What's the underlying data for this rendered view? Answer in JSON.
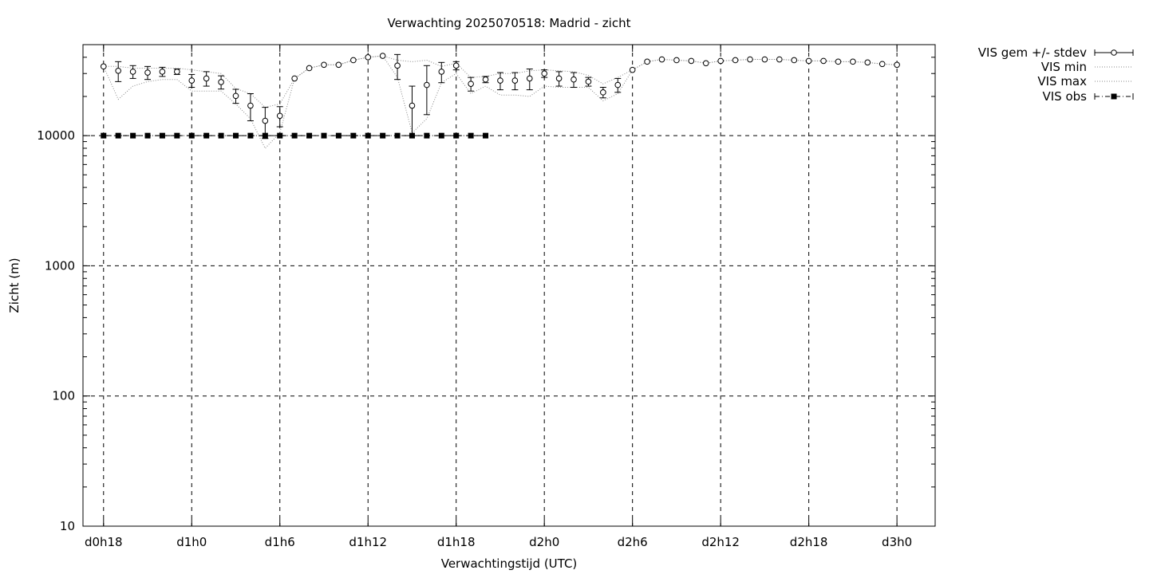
{
  "chart_data": {
    "type": "line",
    "title": "Verwachting 2025070518: Madrid - zicht",
    "xlabel": "Verwachtingstijd (UTC)",
    "ylabel": "Zicht (m)",
    "y_scale": "log",
    "ylim": [
      10,
      50000
    ],
    "y_ticks": [
      10,
      100,
      1000,
      10000
    ],
    "y_tick_labels": [
      "10",
      "100",
      "1000",
      "10000"
    ],
    "x_unit": "forecast hours",
    "xlim": [
      16.6,
      74.6
    ],
    "x_ticks": [
      18,
      24,
      30,
      36,
      42,
      48,
      54,
      60,
      66,
      72
    ],
    "x_tick_labels": [
      "d0h18",
      "d1h0",
      "d1h6",
      "d1h12",
      "d1h18",
      "d2h0",
      "d2h6",
      "d2h12",
      "d2h18",
      "d3h0"
    ],
    "grid": true,
    "legend_position": "outside-top-right",
    "legend": [
      "VIS gem +/- stdev",
      "VIS min",
      "VIS max",
      "VIS obs"
    ],
    "x": [
      18,
      19,
      20,
      21,
      22,
      23,
      24,
      25,
      26,
      27,
      28,
      29,
      30,
      31,
      32,
      33,
      34,
      35,
      36,
      37,
      38,
      39,
      40,
      41,
      42,
      43,
      44,
      45,
      46,
      47,
      48,
      49,
      50,
      51,
      52,
      53,
      54,
      55,
      56,
      57,
      58,
      59,
      60,
      61,
      62,
      63,
      64,
      65,
      66,
      67,
      68,
      69,
      70,
      71,
      72
    ],
    "series": [
      {
        "name": "VIS gem +/- stdev",
        "values": [
          34000,
          31500,
          31000,
          30500,
          31000,
          31000,
          26500,
          27500,
          25800,
          20200,
          17000,
          13000,
          14200,
          27500,
          33000,
          35000,
          35000,
          38000,
          40000,
          41000,
          34500,
          17000,
          24500,
          31000,
          34500,
          25000,
          27000,
          26500,
          26500,
          27500,
          30000,
          27500,
          27000,
          26000,
          21500,
          24500,
          32000,
          37000,
          38500,
          38000,
          37500,
          36000,
          37500,
          38000,
          38500,
          38500,
          38500,
          38000,
          37500,
          37500,
          37000,
          37000,
          36500,
          35500,
          35000
        ],
        "err": [
          0,
          5500,
          3500,
          3500,
          2500,
          1500,
          3000,
          3500,
          3000,
          2500,
          4000,
          3500,
          2500,
          0,
          0,
          0,
          0,
          0,
          0,
          0,
          7500,
          7000,
          10000,
          5500,
          2500,
          3000,
          1500,
          4000,
          4000,
          5000,
          2000,
          3500,
          3500,
          2000,
          2000,
          3000,
          0,
          0,
          0,
          0,
          0,
          0,
          0,
          0,
          0,
          0,
          0,
          0,
          0,
          0,
          0,
          0,
          0,
          0,
          0
        ]
      },
      {
        "name": "VIS min",
        "values": [
          34000,
          19000,
          24000,
          26000,
          27000,
          27000,
          22000,
          22000,
          22000,
          17500,
          13500,
          8000,
          10500,
          27500,
          33000,
          35000,
          35000,
          38000,
          40000,
          41000,
          28000,
          10500,
          13500,
          25500,
          30000,
          21000,
          24000,
          20500,
          20500,
          20000,
          24000,
          23500,
          23500,
          23500,
          18500,
          21000,
          32000,
          37000,
          38500,
          38000,
          37500,
          36000,
          37500,
          38000,
          38500,
          38500,
          38500,
          38000,
          37500,
          37500,
          37000,
          37000,
          36500,
          35500,
          35000
        ]
      },
      {
        "name": "VIS max",
        "values": [
          34000,
          34000,
          33000,
          33000,
          33000,
          33000,
          32000,
          31000,
          30000,
          23000,
          21000,
          16500,
          17500,
          27500,
          33000,
          35000,
          35000,
          38000,
          40000,
          41000,
          38000,
          37000,
          38000,
          34000,
          36000,
          28000,
          28500,
          30000,
          30000,
          31500,
          32000,
          31500,
          31000,
          29000,
          25000,
          28000,
          32000,
          37000,
          38500,
          38000,
          37500,
          36000,
          37500,
          38000,
          38500,
          38500,
          38500,
          38000,
          37500,
          37500,
          37000,
          37000,
          36500,
          35500,
          35000
        ]
      },
      {
        "name": "VIS obs",
        "x": [
          18,
          19,
          20,
          21,
          22,
          23,
          24,
          25,
          26,
          27,
          28,
          29,
          30,
          31,
          32,
          33,
          34,
          35,
          36,
          37,
          38,
          39,
          40,
          41,
          42,
          43,
          44
        ],
        "values": [
          9999,
          9999,
          9999,
          9999,
          9999,
          9999,
          9999,
          9999,
          9999,
          9999,
          9999,
          9999,
          9999,
          9999,
          9999,
          9999,
          9999,
          9999,
          9999,
          9999,
          9999,
          9999,
          9999,
          9999,
          9999,
          9999,
          9999
        ]
      }
    ]
  }
}
